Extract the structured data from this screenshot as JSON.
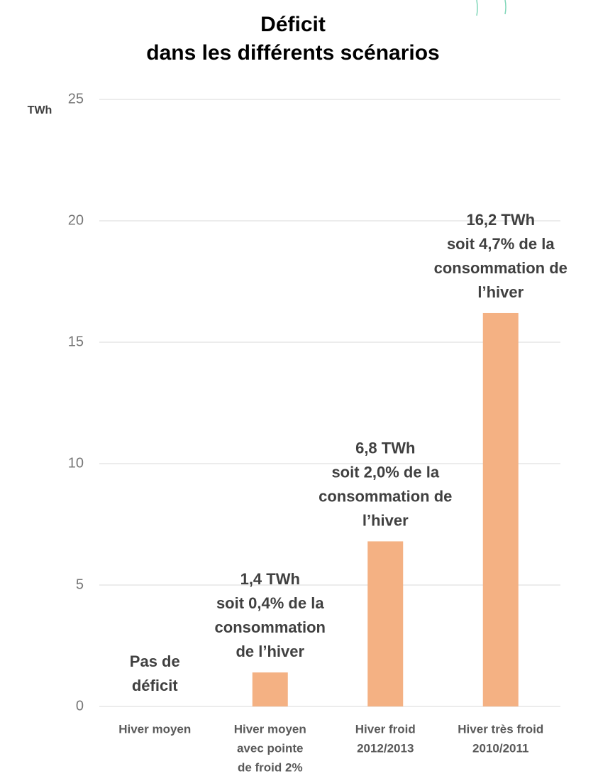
{
  "chart_data": {
    "type": "bar",
    "title": [
      "Déficit",
      "dans les différents scénarios"
    ],
    "y_label": "TWh",
    "categories": [
      [
        "Hiver moyen"
      ],
      [
        "Hiver moyen",
        "avec pointe",
        "de froid 2%"
      ],
      [
        "Hiver froid",
        "2012/2013"
      ],
      [
        "Hiver très froid",
        "2010/2011"
      ]
    ],
    "values": [
      0,
      1.4,
      6.8,
      16.2
    ],
    "value_labels": [
      [
        "Pas de",
        "déficit"
      ],
      [
        "1,4 TWh",
        "soit 0,4% de la",
        "consommation",
        "de l’hiver"
      ],
      [
        "6,8 TWh",
        "soit 2,0% de la",
        "consommation de",
        "l’hiver"
      ],
      [
        "16,2 TWh",
        "soit 4,7% de la",
        "consommation de",
        "l’hiver"
      ]
    ],
    "color": "#f4b183",
    "ylim": [
      0,
      25
    ],
    "yticks": [
      0,
      5,
      10,
      15,
      20,
      25
    ],
    "grid": true
  }
}
